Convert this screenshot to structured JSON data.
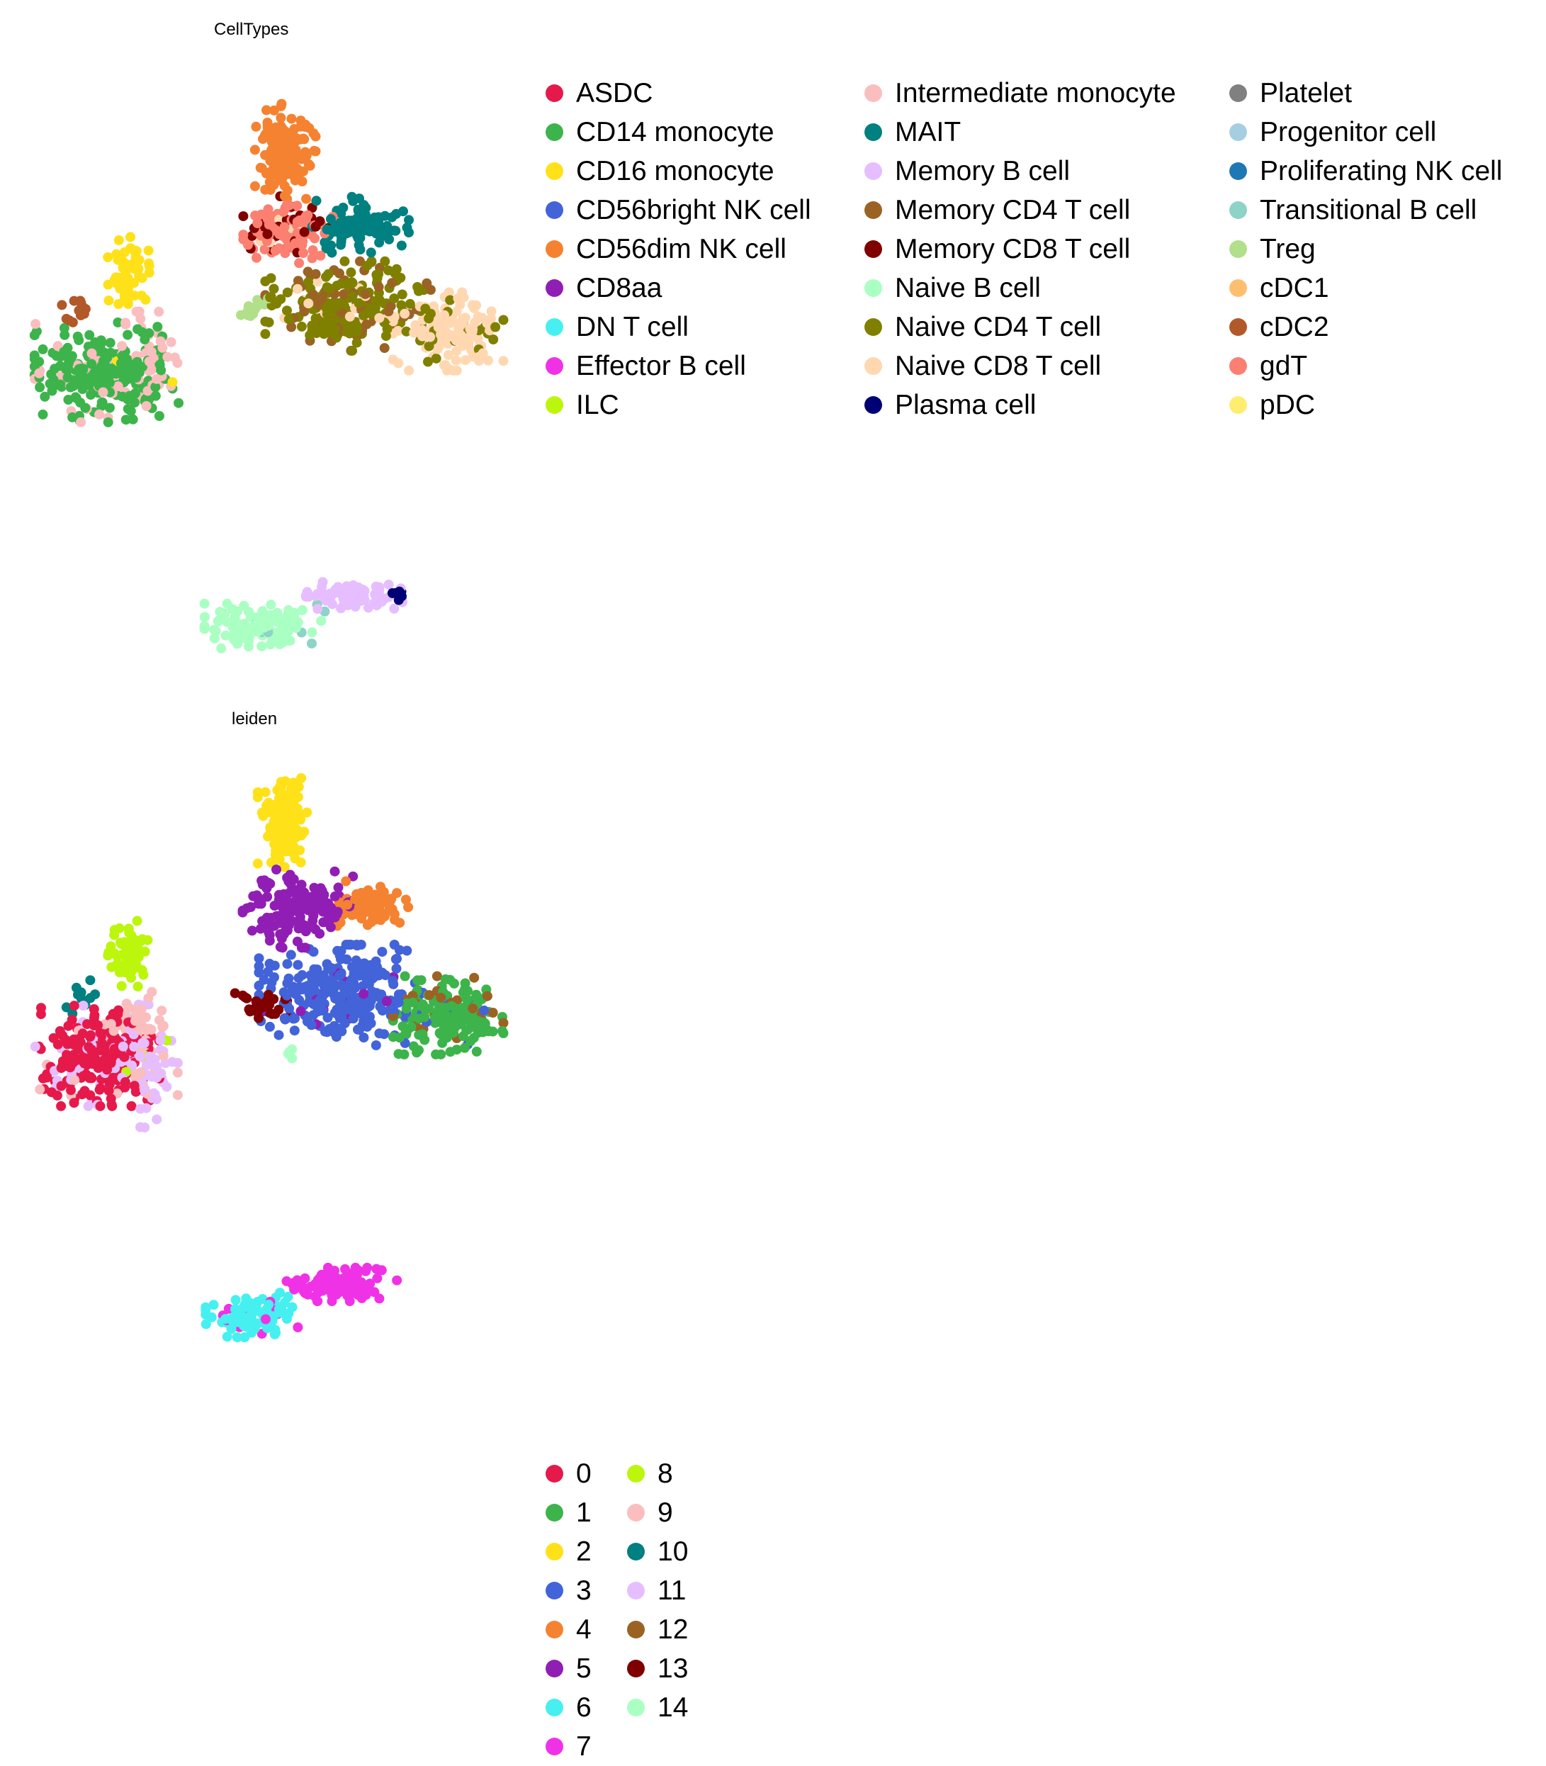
{
  "chart_data": [
    {
      "type": "scatter",
      "title": "CellTypes",
      "xlabel": "",
      "ylabel": "",
      "grid": false,
      "axes_visible": false,
      "legend_position": "right",
      "legend_columns": 3,
      "categories": [
        {
          "name": "ASDC",
          "color": "#e6194b"
        },
        {
          "name": "CD14 monocyte",
          "color": "#3cb44b"
        },
        {
          "name": "CD16 monocyte",
          "color": "#ffe119"
        },
        {
          "name": "CD56bright NK cell",
          "color": "#4363d8"
        },
        {
          "name": "CD56dim NK cell",
          "color": "#f58231"
        },
        {
          "name": "CD8aa",
          "color": "#911eb4"
        },
        {
          "name": "DN T cell",
          "color": "#46f0f0"
        },
        {
          "name": "Effector B cell",
          "color": "#f032e6"
        },
        {
          "name": "ILC",
          "color": "#bcf60c"
        },
        {
          "name": "Intermediate monocyte",
          "color": "#fabebe"
        },
        {
          "name": "MAIT",
          "color": "#008080"
        },
        {
          "name": "Memory B cell",
          "color": "#e6beff"
        },
        {
          "name": "Memory CD4 T cell",
          "color": "#9a6324"
        },
        {
          "name": "Memory CD8 T cell",
          "color": "#800000"
        },
        {
          "name": "Naive B cell",
          "color": "#aaffc3"
        },
        {
          "name": "Naive CD4 T cell",
          "color": "#808000"
        },
        {
          "name": "Naive CD8 T cell",
          "color": "#ffd8b1"
        },
        {
          "name": "Plasma cell",
          "color": "#000075"
        },
        {
          "name": "Platelet",
          "color": "#808080"
        },
        {
          "name": "Progenitor cell",
          "color": "#a6cee3"
        },
        {
          "name": "Proliferating NK cell",
          "color": "#1f78b4"
        },
        {
          "name": "Transitional B cell",
          "color": "#8dd3c7"
        },
        {
          "name": "Treg",
          "color": "#b2df8a"
        },
        {
          "name": "cDC1",
          "color": "#fdbf6f"
        },
        {
          "name": "cDC2",
          "color": "#b15928"
        },
        {
          "name": "gdT",
          "color": "#fb8072"
        },
        {
          "name": "pDC",
          "color": "#ffed6f"
        }
      ],
      "clusters": [
        {
          "category": "CD14 monocyte",
          "x": 2.6,
          "y": 7.0,
          "sx": 0.5,
          "sy": 0.45,
          "n": 260,
          "mix": [
            [
              "Intermediate monocyte",
              0.18
            ],
            [
              "CD16 monocyte",
              0.02
            ]
          ]
        },
        {
          "category": "Intermediate monocyte",
          "x": 3.4,
          "y": 7.2,
          "sx": 0.18,
          "sy": 0.45,
          "n": 45,
          "mix": [
            [
              "CD14 monocyte",
              0.3
            ]
          ]
        },
        {
          "category": "CD16 monocyte",
          "x": 3.0,
          "y": 9.0,
          "sx": 0.15,
          "sy": 0.3,
          "n": 60,
          "mix": []
        },
        {
          "category": "cDC2",
          "x": 2.2,
          "y": 8.2,
          "sx": 0.12,
          "sy": 0.2,
          "n": 14,
          "mix": []
        },
        {
          "category": "CD56dim NK cell",
          "x": 5.5,
          "y": 11.4,
          "sx": 0.22,
          "sy": 0.45,
          "n": 150,
          "mix": []
        },
        {
          "category": "gdT",
          "x": 5.6,
          "y": 9.8,
          "sx": 0.35,
          "sy": 0.3,
          "n": 140,
          "mix": [
            [
              "Memory CD8 T cell",
              0.2
            ],
            [
              "Naive CD8 T cell",
              0.05
            ]
          ]
        },
        {
          "category": "MAIT",
          "x": 6.7,
          "y": 9.9,
          "sx": 0.35,
          "sy": 0.25,
          "n": 100,
          "mix": []
        },
        {
          "category": "Naive CD4 T cell",
          "x": 6.5,
          "y": 8.3,
          "sx": 0.6,
          "sy": 0.4,
          "n": 260,
          "mix": [
            [
              "Memory CD4 T cell",
              0.25
            ],
            [
              "Naive CD8 T cell",
              0.05
            ]
          ]
        },
        {
          "category": "Naive CD8 T cell",
          "x": 8.1,
          "y": 7.8,
          "sx": 0.4,
          "sy": 0.35,
          "n": 150,
          "mix": [
            [
              "Naive CD4 T cell",
              0.15
            ]
          ]
        },
        {
          "category": "Treg",
          "x": 5.0,
          "y": 8.3,
          "sx": 0.15,
          "sy": 0.1,
          "n": 15,
          "mix": []
        },
        {
          "category": "Naive B cell",
          "x": 5.2,
          "y": 2.0,
          "sx": 0.45,
          "sy": 0.2,
          "n": 130,
          "mix": [
            [
              "Transitional B cell",
              0.08
            ]
          ]
        },
        {
          "category": "Memory B cell",
          "x": 6.6,
          "y": 2.6,
          "sx": 0.35,
          "sy": 0.12,
          "n": 80,
          "mix": []
        },
        {
          "category": "Plasma cell",
          "x": 7.3,
          "y": 2.6,
          "sx": 0.06,
          "sy": 0.05,
          "n": 10,
          "mix": []
        }
      ]
    },
    {
      "type": "scatter",
      "title": "leiden",
      "xlabel": "",
      "ylabel": "",
      "grid": false,
      "axes_visible": false,
      "legend_position": "right",
      "legend_columns": 2,
      "categories": [
        {
          "name": "0",
          "color": "#e6194b"
        },
        {
          "name": "1",
          "color": "#3cb44b"
        },
        {
          "name": "2",
          "color": "#ffe119"
        },
        {
          "name": "3",
          "color": "#4363d8"
        },
        {
          "name": "4",
          "color": "#f58231"
        },
        {
          "name": "5",
          "color": "#911eb4"
        },
        {
          "name": "6",
          "color": "#46f0f0"
        },
        {
          "name": "7",
          "color": "#f032e6"
        },
        {
          "name": "8",
          "color": "#bcf60c"
        },
        {
          "name": "9",
          "color": "#fabebe"
        },
        {
          "name": "10",
          "color": "#008080"
        },
        {
          "name": "11",
          "color": "#e6beff"
        },
        {
          "name": "12",
          "color": "#9a6324"
        },
        {
          "name": "13",
          "color": "#800000"
        },
        {
          "name": "14",
          "color": "#aaffc3"
        }
      ],
      "clusters": [
        {
          "category": "0",
          "x": 2.5,
          "y": 7.0,
          "sx": 0.45,
          "sy": 0.45,
          "n": 240,
          "mix": [
            [
              "11",
              0.12
            ],
            [
              "9",
              0.05
            ]
          ]
        },
        {
          "category": "11",
          "x": 3.3,
          "y": 6.8,
          "sx": 0.22,
          "sy": 0.55,
          "n": 80,
          "mix": [
            [
              "9",
              0.25
            ],
            [
              "8",
              0.03
            ]
          ]
        },
        {
          "category": "9",
          "x": 3.1,
          "y": 7.6,
          "sx": 0.22,
          "sy": 0.3,
          "n": 40,
          "mix": []
        },
        {
          "category": "8",
          "x": 3.0,
          "y": 9.0,
          "sx": 0.15,
          "sy": 0.3,
          "n": 60,
          "mix": []
        },
        {
          "category": "10",
          "x": 2.2,
          "y": 8.2,
          "sx": 0.12,
          "sy": 0.2,
          "n": 12,
          "mix": []
        },
        {
          "category": "2",
          "x": 5.5,
          "y": 11.6,
          "sx": 0.2,
          "sy": 0.4,
          "n": 140,
          "mix": []
        },
        {
          "category": "5",
          "x": 5.7,
          "y": 9.9,
          "sx": 0.4,
          "sy": 0.35,
          "n": 150,
          "mix": []
        },
        {
          "category": "4",
          "x": 6.8,
          "y": 10.0,
          "sx": 0.3,
          "sy": 0.2,
          "n": 80,
          "mix": []
        },
        {
          "category": "3",
          "x": 6.4,
          "y": 8.2,
          "sx": 0.6,
          "sy": 0.45,
          "n": 280,
          "mix": [
            [
              "5",
              0.05
            ]
          ]
        },
        {
          "category": "13",
          "x": 5.1,
          "y": 8.0,
          "sx": 0.25,
          "sy": 0.12,
          "n": 30,
          "mix": []
        },
        {
          "category": "1",
          "x": 8.1,
          "y": 7.8,
          "sx": 0.4,
          "sy": 0.35,
          "n": 180,
          "mix": [
            [
              "12",
              0.15
            ],
            [
              "3",
              0.05
            ]
          ]
        },
        {
          "category": "14",
          "x": 5.6,
          "y": 7.0,
          "sx": 0.05,
          "sy": 0.08,
          "n": 4,
          "mix": []
        },
        {
          "category": "6",
          "x": 5.0,
          "y": 1.9,
          "sx": 0.35,
          "sy": 0.2,
          "n": 110,
          "mix": [
            [
              "7",
              0.08
            ]
          ]
        },
        {
          "category": "7",
          "x": 6.4,
          "y": 2.5,
          "sx": 0.4,
          "sy": 0.15,
          "n": 110,
          "mix": []
        }
      ]
    }
  ]
}
